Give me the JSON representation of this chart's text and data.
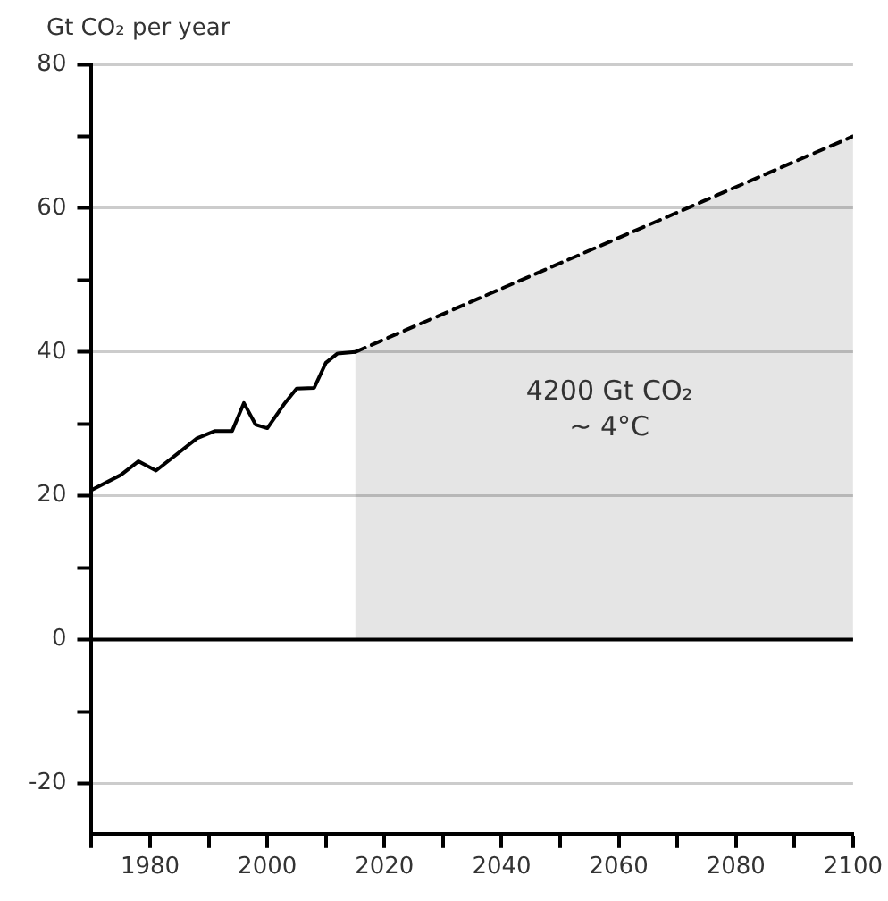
{
  "chart_data": {
    "type": "line",
    "ylabel": "Gt CO₂ per year",
    "xlim": [
      1970,
      2100
    ],
    "xticks": [
      {
        "value": 1970,
        "label": null
      },
      1980,
      {
        "value": 1990,
        "label": null
      },
      2000,
      {
        "value": 2010,
        "label": null
      },
      2020,
      {
        "value": 2030,
        "label": null
      },
      2040,
      {
        "value": 2050,
        "label": null
      },
      2060,
      {
        "value": 2070,
        "label": null
      },
      2080,
      {
        "value": 2090,
        "label": null
      },
      2100
    ],
    "ylim": [
      -27,
      80
    ],
    "yticks": [
      -20,
      {
        "value": -10,
        "label": null
      },
      0,
      {
        "value": 10,
        "label": null
      },
      20,
      {
        "value": 30,
        "label": null
      },
      40,
      {
        "value": 50,
        "label": null
      },
      60,
      {
        "value": 70,
        "label": null
      },
      80
    ],
    "grid": "y",
    "legend": false,
    "marker": "none",
    "series": [
      {
        "color": "#000000",
        "line_style": "solid",
        "x": [
          1970,
          1975,
          1978,
          1981,
          1988,
          1991,
          1994,
          1996,
          1998,
          2000,
          2003,
          2005,
          2008,
          2010,
          2012,
          2015
        ],
        "values": [
          20.8,
          22.9,
          24.8,
          23.5,
          28,
          29,
          29,
          32.9,
          29.9,
          29.4,
          32.9,
          34.9,
          35,
          38.5,
          39.8,
          40
        ]
      },
      {
        "type": "area",
        "color": "#000000",
        "line_style": "dashed",
        "x": [
          2015,
          2100
        ],
        "values": [
          40,
          70
        ]
      }
    ],
    "ref_lines": [
      {
        "axis": "y",
        "value": 0,
        "color": "#000000"
      }
    ],
    "annotations": [
      "4200 Gt CO₂\n~ 4°C"
    ]
  }
}
